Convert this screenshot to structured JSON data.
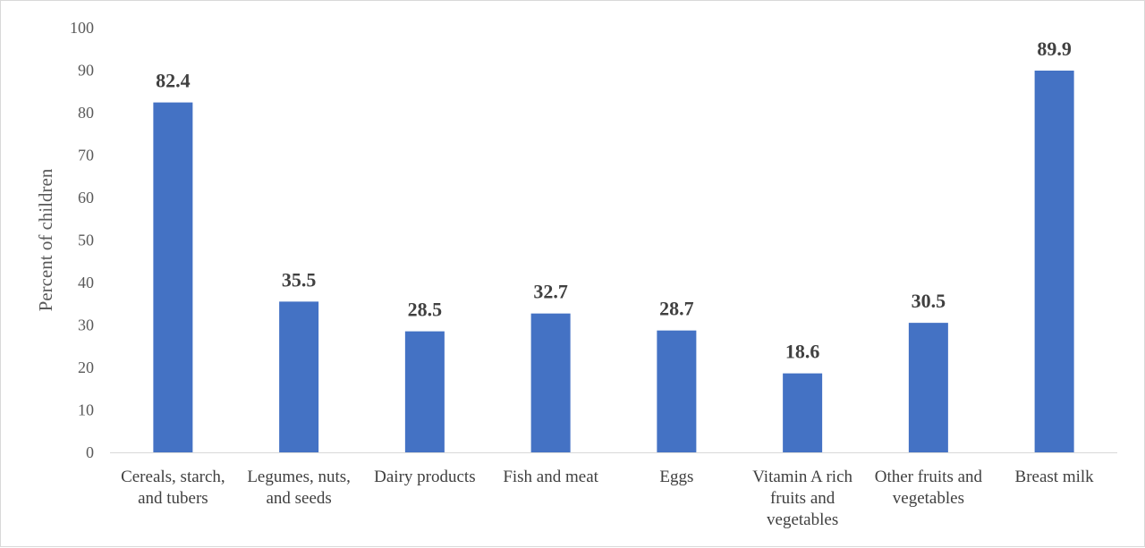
{
  "chart_data": {
    "type": "bar",
    "categories": [
      [
        "Cereals, starch,",
        "and tubers"
      ],
      [
        "Legumes, nuts,",
        "and seeds"
      ],
      [
        "Dairy products"
      ],
      [
        "Fish and meat"
      ],
      [
        "Eggs"
      ],
      [
        "Vitamin A rich",
        "fruits and",
        "vegetables"
      ],
      [
        "Other fruits and",
        "vegetables"
      ],
      [
        "Breast milk"
      ]
    ],
    "values": [
      82.4,
      35.5,
      28.5,
      32.7,
      28.7,
      18.6,
      30.5,
      89.9
    ],
    "value_labels": [
      "82.4",
      "35.5",
      "28.5",
      "32.7",
      "28.7",
      "18.6",
      "30.5",
      "89.9"
    ],
    "ylabel": "Percent of children",
    "ylim": [
      0,
      100
    ],
    "yticks": [
      0,
      10,
      20,
      30,
      40,
      50,
      60,
      70,
      80,
      90,
      100
    ],
    "grid": false,
    "bar_color": "#4472C4",
    "axis_color": "#d9d9d9"
  }
}
